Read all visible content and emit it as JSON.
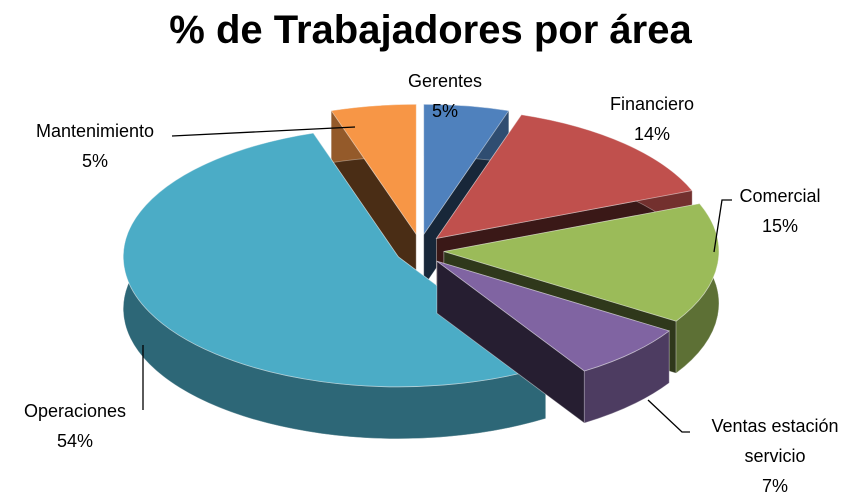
{
  "chart_data": {
    "type": "pie",
    "title": "% de Trabajadores por área",
    "categories": [
      "Gerentes",
      "Financiero",
      "Comercial",
      "Ventas estación servicio",
      "Operaciones",
      "Mantenimiento"
    ],
    "values": [
      5,
      14,
      15,
      7,
      54,
      5
    ],
    "value_labels": [
      "5%",
      "14%",
      "15%",
      "7%",
      "54%",
      "5%"
    ],
    "colors": [
      "#4f81bd",
      "#c0504d",
      "#9bbb59",
      "#8064a2",
      "#4bacc6",
      "#f79646"
    ]
  }
}
